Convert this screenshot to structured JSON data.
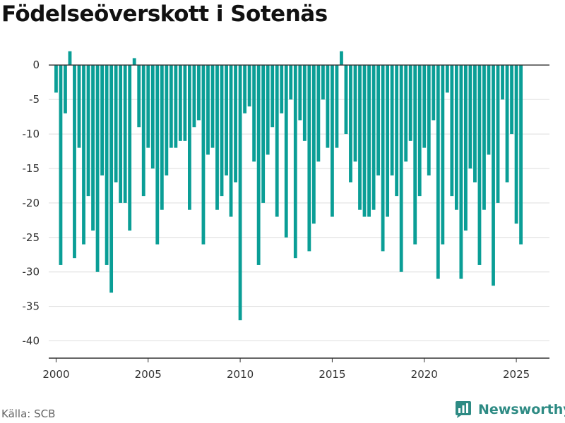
{
  "title": "Födelseöverskott i Sotenäs",
  "source": "Källa: SCB",
  "brand": {
    "name": "Newsworthy",
    "icon": "newsworthy-logo-icon"
  },
  "colors": {
    "bar": "#0a9e96",
    "grid": "#dddddd",
    "axis": "#333333",
    "brand": "#2e8b84"
  },
  "chart_data": {
    "type": "bar",
    "title": "Födelseöverskott i Sotenäs",
    "xlabel": "",
    "ylabel": "",
    "ylim": [
      -42.5,
      3.5
    ],
    "xlim": [
      1999.6,
      2026.8
    ],
    "y_ticks": [
      0,
      -5,
      -10,
      -15,
      -20,
      -25,
      -30,
      -35,
      -40
    ],
    "y_tick_labels": [
      "0",
      "-5",
      "-10",
      "-15",
      "-20",
      "-25",
      "-30",
      "-35",
      "-40"
    ],
    "x_ticks": [
      2000,
      2005,
      2010,
      2015,
      2020,
      2025
    ],
    "x_tick_labels": [
      "2000",
      "2005",
      "2010",
      "2015",
      "2020",
      "2025"
    ],
    "grid": true,
    "legend": "none",
    "frequency": "quarterly",
    "start_period": "2000 Q1",
    "values": [
      -4,
      -29,
      -7,
      2,
      -28,
      -12,
      -26,
      -19,
      -24,
      -30,
      -16,
      -29,
      -33,
      -17,
      -20,
      -20,
      -24,
      1,
      -9,
      -19,
      -12,
      -15,
      -26,
      -21,
      -16,
      -12,
      -12,
      -11,
      -11,
      -21,
      -9,
      -8,
      -26,
      -13,
      -12,
      -21,
      -19,
      -16,
      -22,
      -17,
      -37,
      -7,
      -6,
      -14,
      -29,
      -20,
      -13,
      -9,
      -22,
      -7,
      -25,
      -5,
      -28,
      -8,
      -11,
      -27,
      -23,
      -14,
      -5,
      -12,
      -22,
      -12,
      2,
      -10,
      -17,
      -14,
      -21,
      -22,
      -22,
      -21,
      -16,
      -27,
      -22,
      -16,
      -19,
      -30,
      -14,
      -11,
      -26,
      -19,
      -12,
      -16,
      -8,
      -31,
      -26,
      -4,
      -19,
      -21,
      -31,
      -24,
      -15,
      -17,
      -29,
      -21,
      -13,
      -32,
      -20,
      -5,
      -17,
      -10,
      -23,
      -26
    ]
  }
}
